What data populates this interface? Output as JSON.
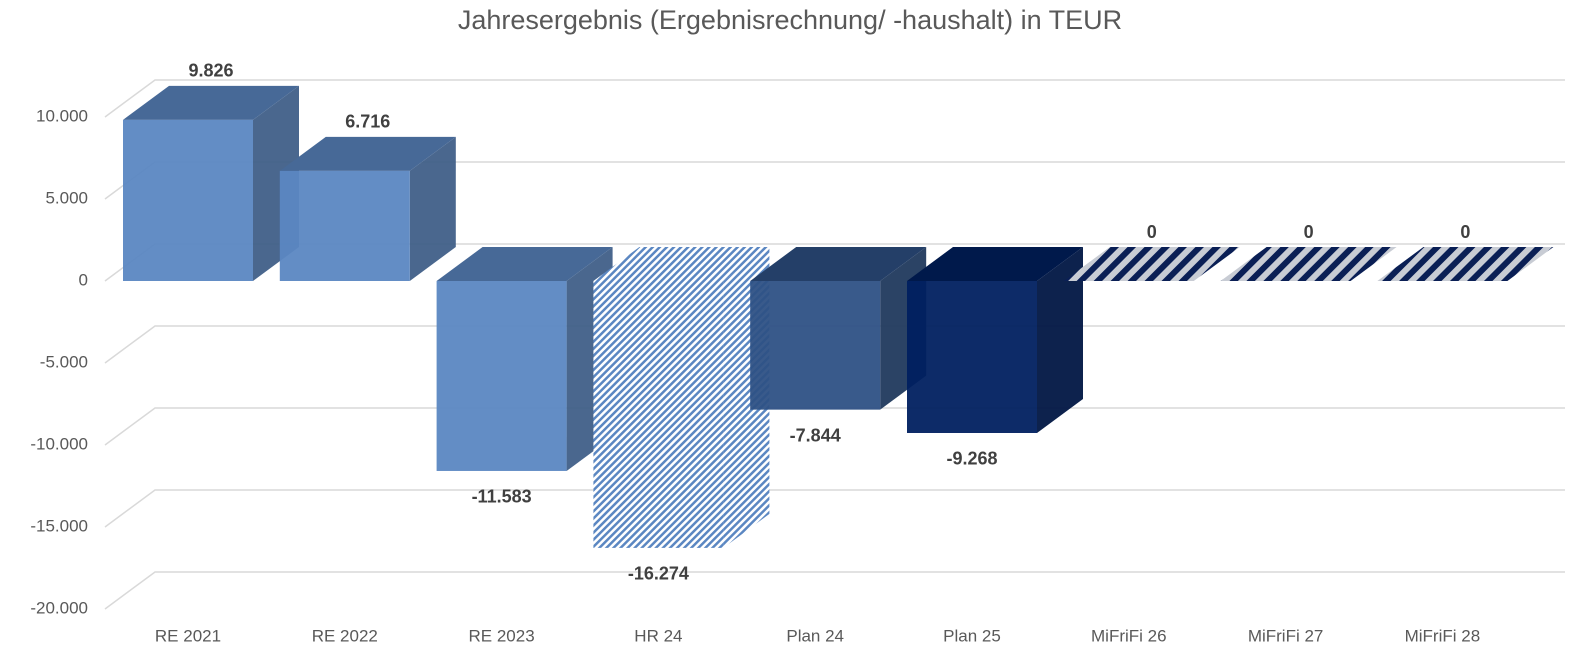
{
  "chart_data": {
    "type": "bar3d",
    "title": "Jahresergebnis (Ergebnisrechnung/ -haushalt) in TEUR",
    "categories": [
      "RE 2021",
      "RE 2022",
      "RE 2023",
      "HR 24",
      "Plan 24",
      "Plan 25",
      "MiFriFi 26",
      "MiFriFi 27",
      "MiFriFi 28"
    ],
    "values": [
      9826,
      6716,
      -11583,
      -16274,
      -7844,
      -9268,
      0,
      0,
      0
    ],
    "value_labels": [
      "9.826",
      "6.716",
      "-11.583",
      "-16.274",
      "-7.844",
      "-9.268",
      "0",
      "0",
      "0"
    ],
    "colors": [
      "#5b87c2",
      "#5b87c2",
      "#5b87c2",
      "#5b87c2",
      "#2e5185",
      "#002060",
      "#002060",
      "#002060",
      "#002060"
    ],
    "hatched": [
      false,
      false,
      false,
      true,
      false,
      false,
      true,
      true,
      true
    ],
    "ylim": [
      -20000,
      10000
    ],
    "yticks": [
      {
        "value": -20000,
        "label": "-20.000"
      },
      {
        "value": -15000,
        "label": "-15.000"
      },
      {
        "value": -10000,
        "label": "-10.000"
      },
      {
        "value": -5000,
        "label": "-5.000"
      },
      0,
      {
        "value": 5000,
        "label": "5.000"
      },
      {
        "value": 10000,
        "label": "10.000"
      }
    ],
    "grid": true
  }
}
